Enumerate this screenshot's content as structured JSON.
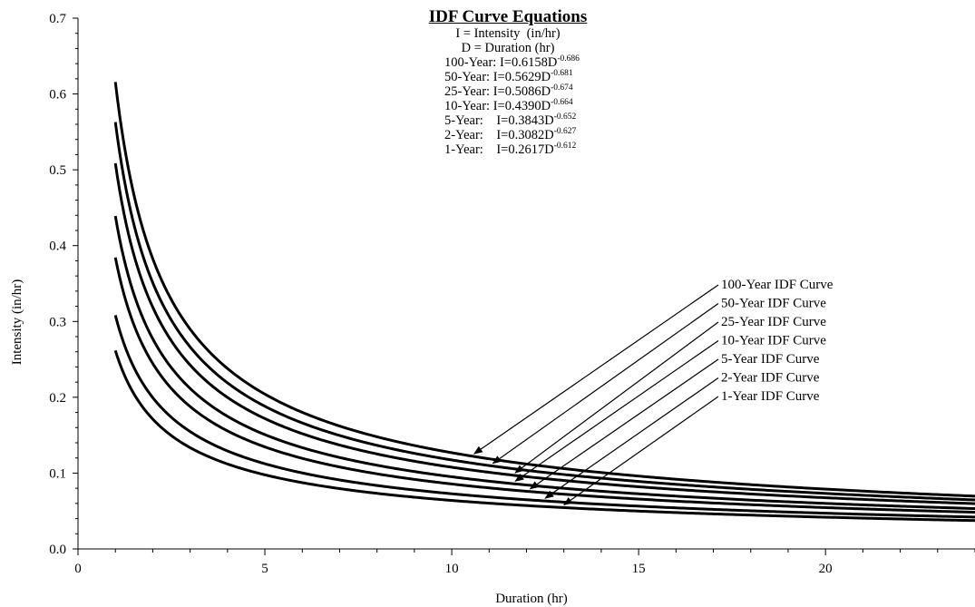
{
  "chart_data": {
    "type": "line",
    "title": "IDF Curve Equations",
    "xlabel": "Duration (hr)",
    "ylabel": "Intensity (in/hr)",
    "xlim": [
      0,
      24
    ],
    "ylim": [
      0,
      0.7
    ],
    "x_ticks": [
      "0",
      "5",
      "10",
      "15",
      "20"
    ],
    "y_ticks": [
      "0.0",
      "0.1",
      "0.2",
      "0.3",
      "0.4",
      "0.5",
      "0.6",
      "0.7"
    ],
    "definitions": [
      "I = Intensity  (in/hr)",
      "D = Duration (hr)"
    ],
    "equations": [
      {
        "label": "100-Year:",
        "eq": "I=0.6158D",
        "exp": "-0.686"
      },
      {
        "label": "50-Year:",
        "eq": "I=0.5629D",
        "exp": "-0.681"
      },
      {
        "label": "25-Year:",
        "eq": "I=0.5086D",
        "exp": "-0.674"
      },
      {
        "label": "10-Year:",
        "eq": "I=0.4390D",
        "exp": "-0.664"
      },
      {
        "label": "5-Year:",
        "eq": "I=0.3843D",
        "exp": "-0.652"
      },
      {
        "label": "2-Year:",
        "eq": "I=0.3082D",
        "exp": "-0.627"
      },
      {
        "label": "1-Year:",
        "eq": "I=0.2617D",
        "exp": "-0.612"
      }
    ],
    "series": [
      {
        "name": "100-Year IDF Curve",
        "a": 0.6158,
        "b": -0.686,
        "x_range": [
          1,
          24
        ],
        "arrow_x": 10.6
      },
      {
        "name": "50-Year IDF Curve",
        "a": 0.5629,
        "b": -0.681,
        "x_range": [
          1,
          24
        ],
        "arrow_x": 11.1
      },
      {
        "name": "25-Year IDF Curve",
        "a": 0.5086,
        "b": -0.674,
        "x_range": [
          1,
          24
        ],
        "arrow_x": 11.7
      },
      {
        "name": "10-Year IDF Curve",
        "a": 0.439,
        "b": -0.664,
        "x_range": [
          1,
          24
        ],
        "arrow_x": 11.7
      },
      {
        "name": "5-Year IDF Curve",
        "a": 0.3843,
        "b": -0.652,
        "x_range": [
          1,
          24
        ],
        "arrow_x": 12.1
      },
      {
        "name": "2-Year IDF Curve",
        "a": 0.3082,
        "b": -0.627,
        "x_range": [
          1,
          24
        ],
        "arrow_x": 12.5
      },
      {
        "name": "1-Year IDF Curve",
        "a": 0.2617,
        "b": -0.612,
        "x_range": [
          1,
          24
        ],
        "arrow_x": 13.0
      }
    ],
    "grid": false,
    "legend": "arrow-annotated labels, right side"
  }
}
